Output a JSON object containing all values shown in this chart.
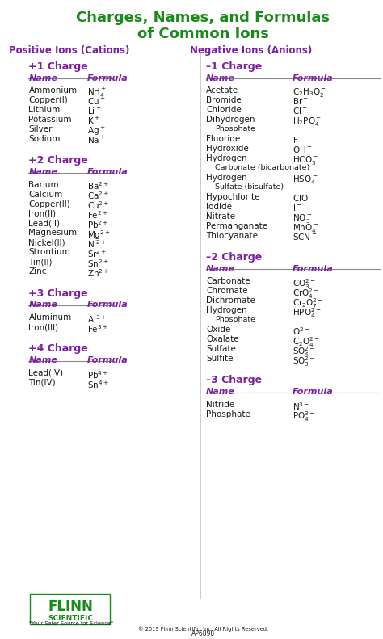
{
  "title_line1": "Charges, Names, and Formulas",
  "title_line2": "of Common Ions",
  "title_color": "#1a8a1a",
  "section_header_color": "#7b1fa2",
  "col_header_color": "#7b1fa2",
  "text_color": "#1a1a1a",
  "bg_color": "#ffffff",
  "left_section_header": "Positive Ions (Cations)",
  "right_section_header": "Negative Ions (Anions)",
  "left_sections": [
    {
      "charge": "+1 Charge",
      "rows": [
        [
          "Ammonium",
          "NH$_4^+$"
        ],
        [
          "Copper(I)",
          "Cu$^+$"
        ],
        [
          "Lithium",
          "Li$^+$"
        ],
        [
          "Potassium",
          "K$^+$"
        ],
        [
          "Silver",
          "Ag$^+$"
        ],
        [
          "Sodium",
          "Na$^+$"
        ]
      ]
    },
    {
      "charge": "+2 Charge",
      "rows": [
        [
          "Barium",
          "Ba$^{2+}$"
        ],
        [
          "Calcium",
          "Ca$^{2+}$"
        ],
        [
          "Copper(II)",
          "Cu$^{2+}$"
        ],
        [
          "Iron(II)",
          "Fe$^{2+}$"
        ],
        [
          "Lead(II)",
          "Pb$^{2+}$"
        ],
        [
          "Magnesium",
          "Mg$^{2+}$"
        ],
        [
          "Nickel(II)",
          "Ni$^{2+}$"
        ],
        [
          "Strontium",
          "Sr$^{2+}$"
        ],
        [
          "Tin(II)",
          "Sn$^{2+}$"
        ],
        [
          "Zinc",
          "Zn$^{2+}$"
        ]
      ]
    },
    {
      "charge": "+3 Charge",
      "rows": [
        [
          "Aluminum",
          "Al$^{3+}$"
        ],
        [
          "Iron(III)",
          "Fe$^{3+}$"
        ]
      ]
    },
    {
      "charge": "+4 Charge",
      "rows": [
        [
          "Lead(IV)",
          "Pb$^{4+}$"
        ],
        [
          "Tin(IV)",
          "Sn$^{4+}$"
        ]
      ]
    }
  ],
  "right_sections": [
    {
      "charge": "–1 Charge",
      "rows": [
        [
          "Acetate",
          "C$_2$H$_3$O$_2^-$",
          false
        ],
        [
          "Bromide",
          "Br$^-$",
          false
        ],
        [
          "Chloride",
          "Cl$^-$",
          false
        ],
        [
          "Dihydrogen",
          "H$_2$PO$_4^-$",
          false
        ],
        [
          "    Phosphate",
          "",
          true
        ],
        [
          "Fluoride",
          "F$^-$",
          false
        ],
        [
          "Hydroxide",
          "OH$^-$",
          false
        ],
        [
          "Hydrogen",
          "HCO$_3^-$",
          false
        ],
        [
          "    Carbonate (bicarbonate)",
          "",
          true
        ],
        [
          "Hydrogen",
          "HSO$_4^-$",
          false
        ],
        [
          "    Sulfate (bisulfate)",
          "",
          true
        ],
        [
          "Hypochlorite",
          "ClO$^-$",
          false
        ],
        [
          "Iodide",
          "I$^-$",
          false
        ],
        [
          "Nitrate",
          "NO$_3^-$",
          false
        ],
        [
          "Permanganate",
          "MnO$_4^-$",
          false
        ],
        [
          "Thiocyanate",
          "SCN$^-$",
          false
        ]
      ]
    },
    {
      "charge": "–2 Charge",
      "rows": [
        [
          "Carbonate",
          "CO$_3^{2-}$",
          false
        ],
        [
          "Chromate",
          "CrO$_4^{2-}$",
          false
        ],
        [
          "Dichromate",
          "Cr$_2$O$_7^{2-}$",
          false
        ],
        [
          "Hydrogen",
          "HPO$_4^{2-}$",
          false
        ],
        [
          "    Phosphate",
          "",
          true
        ],
        [
          "Oxide",
          "O$^{2-}$",
          false
        ],
        [
          "Oxalate",
          "C$_2$O$_4^{2-}$",
          false
        ],
        [
          "Sulfate",
          "SO$_4^{2-}$",
          false
        ],
        [
          "Sulfite",
          "SO$_3^{2-}$",
          false
        ]
      ]
    },
    {
      "charge": "–3 Charge",
      "rows": [
        [
          "Nitride",
          "N$^{3-}$",
          false
        ],
        [
          "Phosphate",
          "PO$_4^{3-}$",
          false
        ]
      ]
    }
  ],
  "flinn_text1": "FLINN",
  "flinn_text2": "SCIENTIFIC",
  "flinn_text3": "\"Your Safer Source for Science\"",
  "flinn_copyright": "© 2019 Flinn Scientific, Inc. All Rights Reserved.",
  "flinn_code": "AP6898",
  "flinn_color": "#1a8a1a"
}
